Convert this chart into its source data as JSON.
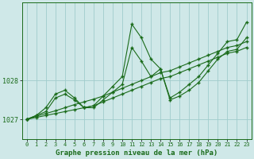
{
  "bg_color": "#cfe8e8",
  "line_color": "#1a6b1a",
  "grid_color": "#a0cccc",
  "xlabel": "Graphe pression niveau de la mer (hPa)",
  "xlabel_fontsize": 6.5,
  "yticks": [
    1027,
    1028
  ],
  "ylim": [
    1026.5,
    1030.0
  ],
  "xlim": [
    -0.5,
    23.5
  ],
  "xticks": [
    0,
    1,
    2,
    3,
    4,
    5,
    6,
    7,
    8,
    9,
    10,
    11,
    12,
    13,
    14,
    15,
    16,
    17,
    18,
    19,
    20,
    21,
    22,
    23
  ],
  "series": [
    {
      "x": [
        0,
        1,
        2,
        3,
        4,
        5,
        6,
        7,
        8,
        9,
        10,
        11,
        12,
        13,
        14,
        15,
        16,
        17,
        18,
        19,
        20,
        21,
        22,
        23
      ],
      "y": [
        1027.0,
        1027.05,
        1027.1,
        1027.15,
        1027.2,
        1027.25,
        1027.3,
        1027.35,
        1027.45,
        1027.55,
        1027.65,
        1027.75,
        1027.85,
        1027.95,
        1028.05,
        1028.1,
        1028.2,
        1028.3,
        1028.4,
        1028.5,
        1028.6,
        1028.7,
        1028.75,
        1028.85
      ]
    },
    {
      "x": [
        0,
        1,
        2,
        3,
        4,
        5,
        6,
        7,
        8,
        9,
        10,
        11,
        12,
        13,
        14,
        15,
        16,
        17,
        18,
        19,
        20,
        21,
        22,
        23
      ],
      "y": [
        1027.0,
        1027.08,
        1027.15,
        1027.22,
        1027.3,
        1027.38,
        1027.45,
        1027.52,
        1027.6,
        1027.7,
        1027.8,
        1027.9,
        1028.0,
        1028.1,
        1028.2,
        1028.25,
        1028.35,
        1028.45,
        1028.55,
        1028.65,
        1028.75,
        1028.85,
        1028.9,
        1029.0
      ]
    },
    {
      "x": [
        0,
        1,
        2,
        3,
        4,
        5,
        6,
        7,
        8,
        9,
        10,
        11,
        12,
        13,
        14,
        15,
        16,
        17,
        18,
        19,
        20,
        21,
        22,
        23
      ],
      "y": [
        1027.0,
        1027.1,
        1027.3,
        1027.65,
        1027.75,
        1027.55,
        1027.3,
        1027.35,
        1027.6,
        1027.85,
        1028.1,
        1029.45,
        1029.1,
        1028.55,
        1028.3,
        1027.55,
        1027.7,
        1027.9,
        1028.1,
        1028.4,
        1028.7,
        1029.0,
        1029.05,
        1029.5
      ]
    },
    {
      "x": [
        0,
        1,
        2,
        3,
        4,
        5,
        6,
        7,
        8,
        9,
        10,
        11,
        12,
        13,
        14,
        15,
        16,
        17,
        18,
        19,
        20,
        21,
        22,
        23
      ],
      "y": [
        1027.0,
        1027.1,
        1027.2,
        1027.55,
        1027.65,
        1027.5,
        1027.3,
        1027.3,
        1027.5,
        1027.7,
        1027.9,
        1028.85,
        1028.5,
        1028.1,
        1028.3,
        1027.5,
        1027.6,
        1027.75,
        1027.95,
        1028.25,
        1028.55,
        1028.75,
        1028.8,
        1029.1
      ]
    }
  ]
}
